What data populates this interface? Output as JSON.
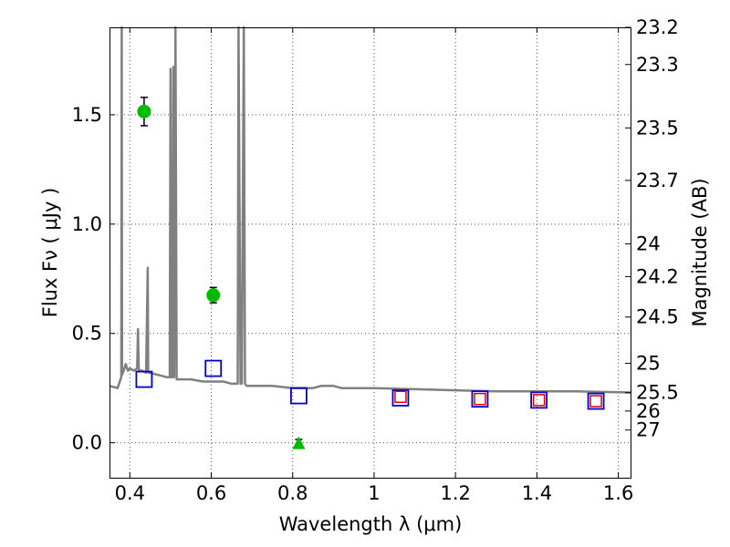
{
  "chart_data": {
    "type": "scatter",
    "title": "",
    "xlabel": "Wavelength  λ (μm)",
    "ylabel": "Flux  Fν  ( μJy )",
    "y2label": "Magnitude (AB)",
    "xlim": [
      0.35,
      1.63
    ],
    "ylim": [
      -0.16,
      1.9
    ],
    "grid": true,
    "legend": "none",
    "x_ticks": [
      0.4,
      0.6,
      0.8,
      1.0,
      1.2,
      1.4,
      1.6
    ],
    "x_tick_labels": [
      "0.4",
      "0.6",
      "0.8",
      "1",
      "1.2",
      "1.4",
      "1.6"
    ],
    "y_ticks": [
      0.0,
      0.5,
      1.0,
      1.5
    ],
    "y_tick_labels": [
      "0.0",
      "0.5",
      "1.0",
      "1.5"
    ],
    "y2_ticks": [
      {
        "label": "23.2",
        "flux": 1.9
      },
      {
        "label": "23.3",
        "flux": 1.73
      },
      {
        "label": "23.5",
        "flux": 1.44
      },
      {
        "label": "23.7",
        "flux": 1.2
      },
      {
        "label": "24",
        "flux": 0.91
      },
      {
        "label": "24.2",
        "flux": 0.76
      },
      {
        "label": "24.5",
        "flux": 0.575
      },
      {
        "label": "25",
        "flux": 0.363
      },
      {
        "label": "25.5",
        "flux": 0.229
      },
      {
        "label": "26",
        "flux": 0.145
      },
      {
        "label": "27",
        "flux": 0.058
      }
    ],
    "colors": {
      "model": "#808080",
      "detections": "#00bb00",
      "model_photometry": "#0000cc",
      "observed_box": "#dd0000",
      "errorbar": "#000000",
      "grid": "#555555"
    },
    "series": [
      {
        "role": "model_spectrum",
        "type": "line",
        "x": [
          0.35,
          0.37,
          0.379,
          0.38,
          0.381,
          0.385,
          0.39,
          0.395,
          0.4,
          0.41,
          0.418,
          0.42,
          0.422,
          0.43,
          0.44,
          0.444,
          0.445,
          0.446,
          0.45,
          0.47,
          0.49,
          0.498,
          0.5,
          0.502,
          0.505,
          0.507,
          0.508,
          0.509,
          0.512,
          0.515,
          0.53,
          0.55,
          0.58,
          0.6,
          0.63,
          0.65,
          0.665,
          0.667,
          0.672,
          0.675,
          0.68,
          0.683,
          0.687,
          0.69,
          0.72,
          0.75,
          0.8,
          0.82,
          0.85,
          0.87,
          0.9,
          0.92,
          0.95,
          1.0,
          1.1,
          1.2,
          1.3,
          1.4,
          1.5,
          1.63
        ],
        "y": [
          0.26,
          0.25,
          0.3,
          1.95,
          0.31,
          0.33,
          0.36,
          0.33,
          0.34,
          0.33,
          0.34,
          0.52,
          0.33,
          0.33,
          0.32,
          0.8,
          0.33,
          0.32,
          0.32,
          0.31,
          0.3,
          0.3,
          1.71,
          0.3,
          0.3,
          1.72,
          0.31,
          0.3,
          1.95,
          0.29,
          0.29,
          0.29,
          0.28,
          0.28,
          0.28,
          0.27,
          0.27,
          1.95,
          0.27,
          0.27,
          1.95,
          0.27,
          0.26,
          0.26,
          0.26,
          0.26,
          0.25,
          0.25,
          0.25,
          0.26,
          0.26,
          0.25,
          0.25,
          0.25,
          0.245,
          0.24,
          0.235,
          0.235,
          0.235,
          0.23
        ]
      },
      {
        "role": "detections",
        "type": "scatter",
        "marker": "circle",
        "x": [
          0.435,
          0.605
        ],
        "y": [
          1.515,
          0.675
        ],
        "yerr": [
          0.065,
          0.035
        ]
      },
      {
        "role": "upper_limit",
        "type": "scatter",
        "marker": "triangle",
        "x": [
          0.815
        ],
        "y": [
          0.0
        ],
        "yerr": [
          0.015
        ]
      },
      {
        "role": "model_photometry",
        "type": "scatter",
        "marker": "square-open",
        "x": [
          0.435,
          0.605,
          0.815,
          1.065,
          1.26,
          1.405,
          1.545
        ],
        "y": [
          0.29,
          0.34,
          0.215,
          0.205,
          0.2,
          0.195,
          0.19
        ]
      },
      {
        "role": "observed_photometry",
        "type": "scatter",
        "marker": "square-open",
        "x": [
          1.065,
          1.26,
          1.405,
          1.545
        ],
        "y": [
          0.21,
          0.2,
          0.195,
          0.19
        ]
      }
    ]
  }
}
